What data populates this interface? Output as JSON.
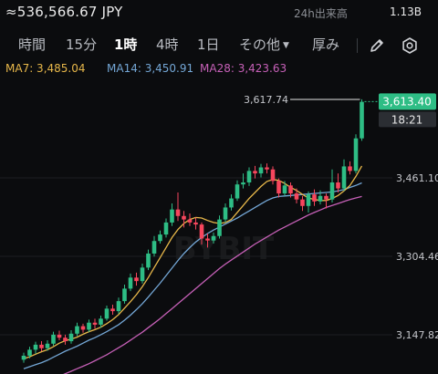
{
  "header": {
    "price_jpy": "≈536,566.67 JPY",
    "volume_label": "24h出来高",
    "volume_value": "1.13B"
  },
  "tabs": [
    {
      "label": "時間",
      "active": false
    },
    {
      "label": "15分",
      "active": false
    },
    {
      "label": "1時",
      "active": true
    },
    {
      "label": "4時",
      "active": false
    },
    {
      "label": "1日",
      "active": false
    },
    {
      "label": "その他",
      "active": false
    },
    {
      "label": "厚み",
      "active": false
    }
  ],
  "tools": {
    "draw_icon": "pencil-icon",
    "settings_icon": "gear-icon"
  },
  "ma": {
    "ma7": "MA7: 3,485.04",
    "ma14": "MA14: 3,450.91",
    "ma28": "MA28: 3,423.63"
  },
  "colors": {
    "up": "#2ebd85",
    "down": "#f6465d",
    "ma7": "#e8b84a",
    "ma14": "#74a7d6",
    "ma28": "#c660b7",
    "price_tag": "#2ebd85"
  },
  "watermark": "BYBIT",
  "chart_data": {
    "type": "candlestick",
    "y_ticks": [
      {
        "value": 3461.1,
        "label": "3,461.10"
      },
      {
        "value": 3304.46,
        "label": "3,304.46"
      },
      {
        "value": 3147.82,
        "label": "3,147.82"
      }
    ],
    "high_marker": {
      "value": 3617.74,
      "label": "3,617.74"
    },
    "last_price": {
      "value": 3613.4,
      "label": "3,613.40"
    },
    "countdown": "18:21",
    "candles": [
      [
        3098,
        3106,
        3092,
        3112
      ],
      [
        3106,
        3118,
        3101,
        3124
      ],
      [
        3118,
        3128,
        3110,
        3134
      ],
      [
        3128,
        3121,
        3115,
        3135
      ],
      [
        3121,
        3130,
        3116,
        3137
      ],
      [
        3130,
        3148,
        3126,
        3154
      ],
      [
        3148,
        3142,
        3137,
        3156
      ],
      [
        3142,
        3135,
        3128,
        3148
      ],
      [
        3135,
        3150,
        3130,
        3157
      ],
      [
        3150,
        3165,
        3145,
        3172
      ],
      [
        3165,
        3158,
        3152,
        3170
      ],
      [
        3158,
        3172,
        3153,
        3178
      ],
      [
        3172,
        3168,
        3160,
        3180
      ],
      [
        3168,
        3180,
        3162,
        3186
      ],
      [
        3180,
        3200,
        3176,
        3206
      ],
      [
        3200,
        3195,
        3188,
        3208
      ],
      [
        3195,
        3215,
        3190,
        3222
      ],
      [
        3215,
        3240,
        3210,
        3248
      ],
      [
        3240,
        3262,
        3235,
        3270
      ],
      [
        3262,
        3255,
        3246,
        3272
      ],
      [
        3255,
        3282,
        3250,
        3290
      ],
      [
        3282,
        3310,
        3277,
        3318
      ],
      [
        3310,
        3335,
        3304,
        3345
      ],
      [
        3335,
        3348,
        3330,
        3356
      ],
      [
        3348,
        3372,
        3342,
        3380
      ],
      [
        3372,
        3398,
        3365,
        3410
      ],
      [
        3398,
        3385,
        3375,
        3432
      ],
      [
        3385,
        3378,
        3362,
        3395
      ],
      [
        3378,
        3372,
        3365,
        3390
      ],
      [
        3372,
        3368,
        3358,
        3382
      ],
      [
        3368,
        3340,
        3328,
        3372
      ],
      [
        3340,
        3336,
        3322,
        3350
      ],
      [
        3336,
        3345,
        3330,
        3352
      ],
      [
        3345,
        3378,
        3340,
        3386
      ],
      [
        3378,
        3402,
        3372,
        3410
      ],
      [
        3402,
        3420,
        3396,
        3428
      ],
      [
        3420,
        3448,
        3415,
        3456
      ],
      [
        3448,
        3452,
        3440,
        3470
      ],
      [
        3452,
        3475,
        3445,
        3482
      ],
      [
        3475,
        3470,
        3460,
        3485
      ],
      [
        3470,
        3482,
        3462,
        3489
      ],
      [
        3482,
        3478,
        3470,
        3490
      ],
      [
        3478,
        3455,
        3448,
        3484
      ],
      [
        3455,
        3430,
        3422,
        3460
      ],
      [
        3430,
        3446,
        3425,
        3455
      ],
      [
        3446,
        3430,
        3422,
        3452
      ],
      [
        3430,
        3418,
        3410,
        3440
      ],
      [
        3418,
        3405,
        3395,
        3425
      ],
      [
        3405,
        3428,
        3392,
        3434
      ],
      [
        3428,
        3414,
        3405,
        3438
      ],
      [
        3414,
        3425,
        3408,
        3436
      ],
      [
        3425,
        3418,
        3400,
        3430
      ],
      [
        3418,
        3452,
        3412,
        3478
      ],
      [
        3452,
        3440,
        3432,
        3470
      ],
      [
        3440,
        3484,
        3435,
        3498
      ],
      [
        3484,
        3475,
        3468,
        3494
      ],
      [
        3475,
        3540,
        3470,
        3548
      ],
      [
        3540,
        3613,
        3535,
        3618
      ]
    ],
    "ma7_values": [
      3100,
      3104,
      3109,
      3114,
      3118,
      3124,
      3131,
      3136,
      3139,
      3143,
      3149,
      3154,
      3158,
      3163,
      3170,
      3178,
      3188,
      3201,
      3214,
      3228,
      3244,
      3262,
      3282,
      3302,
      3322,
      3342,
      3358,
      3370,
      3378,
      3382,
      3381,
      3376,
      3372,
      3370,
      3372,
      3378,
      3392,
      3406,
      3420,
      3432,
      3444,
      3454,
      3458,
      3456,
      3450,
      3442,
      3436,
      3428,
      3421,
      3418,
      3416,
      3416,
      3420,
      3426,
      3435,
      3446,
      3464,
      3485
    ],
    "ma14_values": [
      3080,
      3084,
      3088,
      3092,
      3097,
      3103,
      3109,
      3115,
      3120,
      3125,
      3131,
      3137,
      3142,
      3148,
      3154,
      3161,
      3168,
      3177,
      3187,
      3198,
      3210,
      3223,
      3237,
      3251,
      3266,
      3281,
      3296,
      3310,
      3322,
      3333,
      3342,
      3350,
      3357,
      3363,
      3369,
      3375,
      3381,
      3388,
      3395,
      3402,
      3409,
      3416,
      3421,
      3424,
      3425,
      3426,
      3427,
      3428,
      3429,
      3430,
      3431,
      3432,
      3433,
      3435,
      3438,
      3442,
      3446,
      3451
    ],
    "ma28_values": [
      3040,
      3044,
      3048,
      3052,
      3056,
      3060,
      3065,
      3070,
      3075,
      3080,
      3085,
      3090,
      3096,
      3102,
      3108,
      3115,
      3122,
      3129,
      3137,
      3145,
      3153,
      3162,
      3171,
      3180,
      3190,
      3200,
      3210,
      3220,
      3230,
      3240,
      3250,
      3260,
      3270,
      3280,
      3289,
      3297,
      3305,
      3313,
      3321,
      3329,
      3336,
      3343,
      3350,
      3357,
      3363,
      3369,
      3375,
      3381,
      3387,
      3392,
      3397,
      3402,
      3406,
      3410,
      3414,
      3418,
      3421,
      3424
    ]
  }
}
